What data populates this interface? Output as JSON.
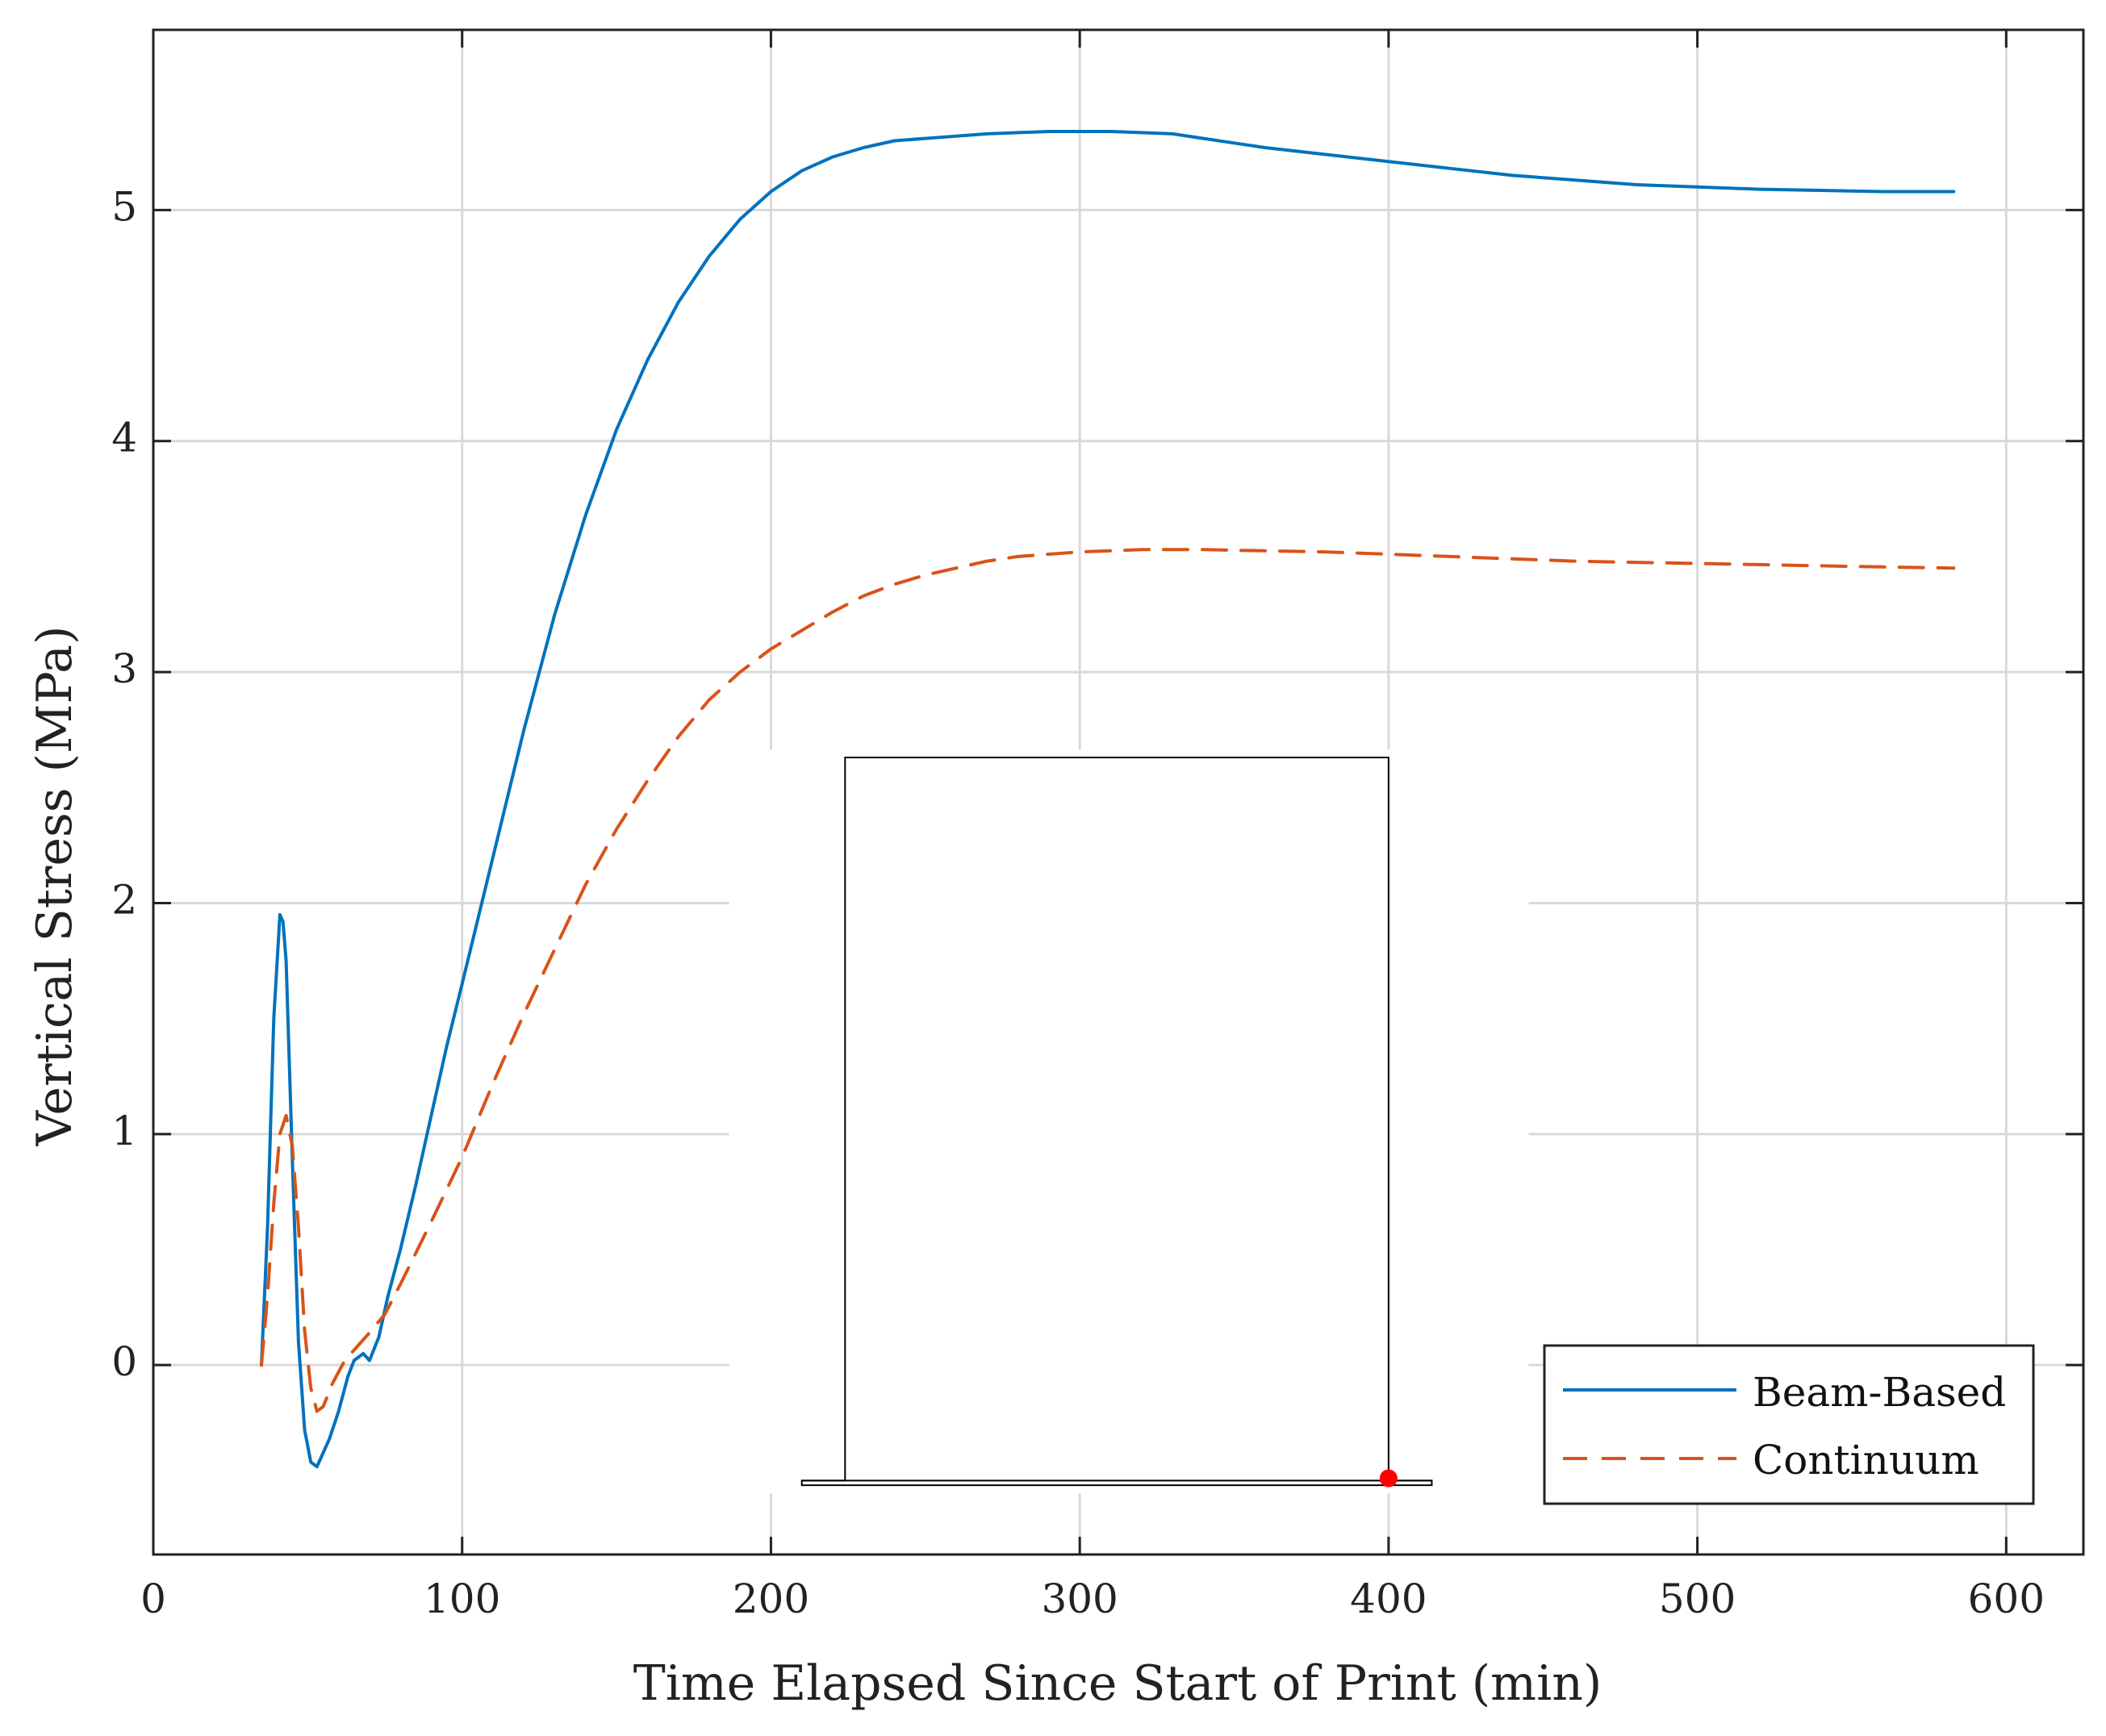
{
  "chart_data": {
    "type": "line",
    "xlabel": "Time Elapsed Since Start of Print (min)",
    "ylabel": "Vertical Stress (MPa)",
    "xlim": [
      0,
      625
    ],
    "ylim": [
      -0.82,
      5.78
    ],
    "xticks": [
      0,
      100,
      200,
      300,
      400,
      500,
      600
    ],
    "yticks": [
      0,
      1,
      2,
      3,
      4,
      5
    ],
    "grid": true,
    "legend_position": "bottom-right",
    "series": [
      {
        "name": "Beam-Based",
        "color": "#0072BD",
        "style": "solid",
        "x": [
          35,
          37,
          39,
          41,
          42,
          43,
          45,
          47,
          49,
          51,
          53,
          55,
          57,
          60,
          63,
          65,
          66,
          68,
          70,
          73,
          76,
          80,
          85,
          90,
          95,
          100,
          110,
          120,
          130,
          140,
          150,
          160,
          170,
          180,
          190,
          200,
          210,
          220,
          230,
          240,
          250,
          260,
          270,
          280,
          290,
          300,
          310,
          320,
          330,
          340,
          350,
          360,
          380,
          400,
          420,
          440,
          460,
          480,
          500,
          520,
          540,
          560,
          583
        ],
        "y": [
          0.0,
          0.6,
          1.5,
          1.95,
          1.92,
          1.75,
          0.9,
          0.1,
          -0.28,
          -0.42,
          -0.44,
          -0.38,
          -0.32,
          -0.2,
          -0.05,
          0.02,
          0.03,
          0.05,
          0.02,
          0.12,
          0.3,
          0.5,
          0.78,
          1.08,
          1.38,
          1.65,
          2.2,
          2.75,
          3.25,
          3.68,
          4.05,
          4.35,
          4.6,
          4.8,
          4.96,
          5.08,
          5.17,
          5.23,
          5.27,
          5.3,
          5.31,
          5.32,
          5.33,
          5.335,
          5.34,
          5.34,
          5.34,
          5.335,
          5.33,
          5.31,
          5.29,
          5.27,
          5.24,
          5.21,
          5.18,
          5.15,
          5.13,
          5.11,
          5.1,
          5.09,
          5.085,
          5.08,
          5.08
        ]
      },
      {
        "name": "Continuum",
        "color": "#D95319",
        "style": "dashed",
        "x": [
          35,
          37,
          39,
          41,
          43,
          45,
          47,
          49,
          51,
          53,
          55,
          58,
          62,
          66,
          70,
          75,
          80,
          90,
          100,
          110,
          120,
          130,
          140,
          150,
          160,
          170,
          180,
          190,
          200,
          210,
          220,
          230,
          240,
          250,
          260,
          270,
          280,
          290,
          300,
          320,
          340,
          360,
          380,
          400,
          420,
          440,
          460,
          480,
          500,
          520,
          540,
          560,
          583
        ],
        "y": [
          0.0,
          0.3,
          0.7,
          1.0,
          1.08,
          0.95,
          0.6,
          0.15,
          -0.1,
          -0.2,
          -0.18,
          -0.08,
          0.02,
          0.08,
          0.14,
          0.22,
          0.35,
          0.62,
          0.9,
          1.22,
          1.52,
          1.8,
          2.08,
          2.32,
          2.53,
          2.72,
          2.88,
          3.0,
          3.1,
          3.18,
          3.26,
          3.33,
          3.38,
          3.42,
          3.45,
          3.48,
          3.5,
          3.51,
          3.52,
          3.53,
          3.53,
          3.525,
          3.52,
          3.51,
          3.5,
          3.49,
          3.48,
          3.475,
          3.47,
          3.465,
          3.46,
          3.455,
          3.45
        ]
      }
    ],
    "inset": {
      "description_shape": "wall",
      "base_x": [
        210,
        414
      ],
      "base_y": [
        -0.5,
        -0.52
      ],
      "wall_x": [
        224,
        400
      ],
      "wall_top_y": 2.63,
      "marker": {
        "x": 400,
        "y": -0.49,
        "color": "#ff0000"
      }
    }
  }
}
